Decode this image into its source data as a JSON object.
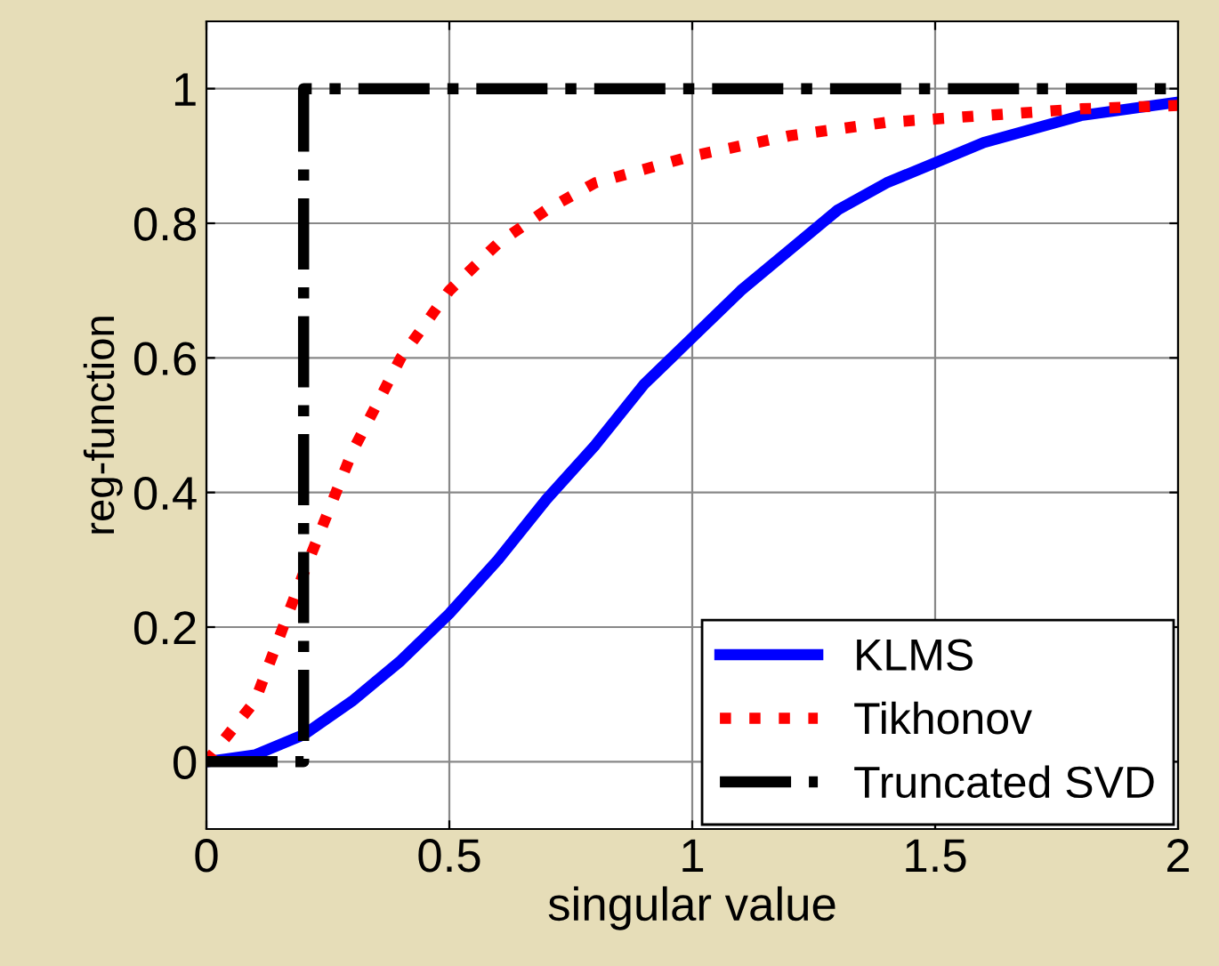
{
  "chart_data": {
    "type": "line",
    "xlabel": "singular value",
    "ylabel": "reg-function",
    "xlim": [
      0,
      2
    ],
    "xticks": [
      0,
      0.5,
      1,
      1.5,
      2
    ],
    "ylim": [
      -0.1,
      1.1
    ],
    "yticks": [
      0,
      0.2,
      0.4,
      0.6,
      0.8,
      1
    ],
    "grid": true,
    "legend": "bottom right",
    "series": [
      {
        "name": "KLMS",
        "color": "#0000ff",
        "line_style": "solid",
        "x": [
          0,
          0.1,
          0.2,
          0.3,
          0.4,
          0.5,
          0.6,
          0.7,
          0.8,
          0.9,
          1.0,
          1.1,
          1.2,
          1.3,
          1.4,
          1.5,
          1.6,
          1.8,
          2.0
        ],
        "values": [
          0,
          0.01,
          0.04,
          0.09,
          0.15,
          0.22,
          0.3,
          0.39,
          0.47,
          0.56,
          0.63,
          0.7,
          0.76,
          0.82,
          0.86,
          0.89,
          0.92,
          0.96,
          0.98
        ]
      },
      {
        "name": "Tikhonov",
        "color": "#ff0000",
        "line_style": "dotted",
        "x": [
          0,
          0.1,
          0.2,
          0.3,
          0.4,
          0.5,
          0.6,
          0.7,
          0.8,
          0.9,
          1.0,
          1.2,
          1.4,
          1.6,
          1.8,
          2.0
        ],
        "values": [
          0,
          0.09,
          0.28,
          0.46,
          0.6,
          0.7,
          0.77,
          0.82,
          0.86,
          0.88,
          0.9,
          0.93,
          0.95,
          0.96,
          0.97,
          0.975
        ]
      },
      {
        "name": "Truncated SVD",
        "color": "#000000",
        "line_style": "dashdot",
        "x": [
          0,
          0.2,
          0.2,
          2
        ],
        "values": [
          0,
          0,
          1,
          1
        ]
      }
    ]
  }
}
